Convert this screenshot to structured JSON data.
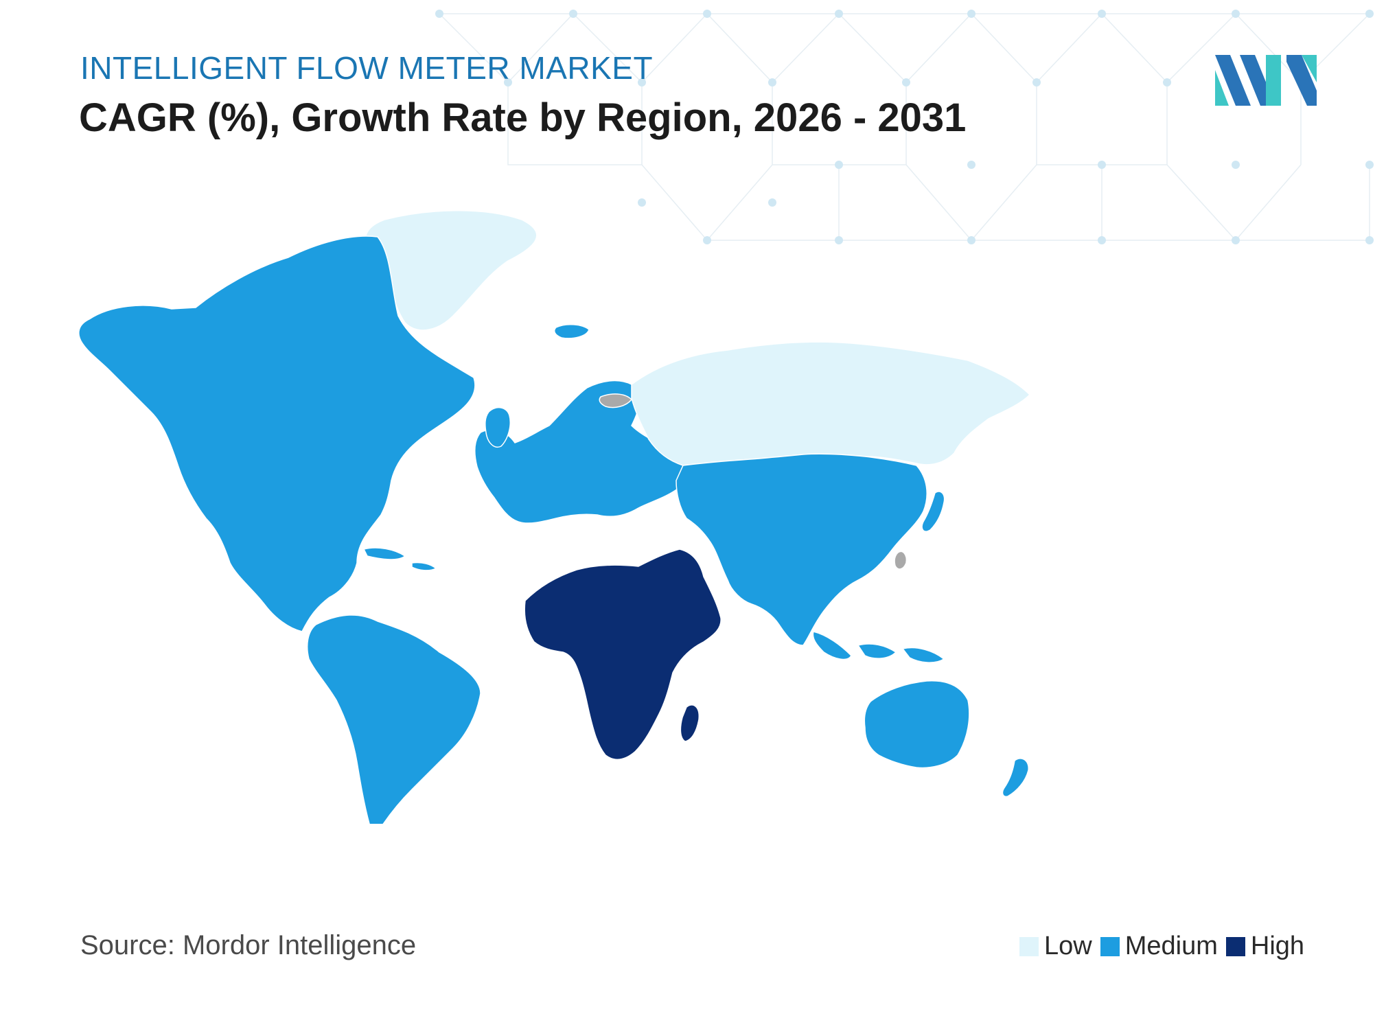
{
  "header": {
    "subtitle": "INTELLIGENT FLOW METER MARKET",
    "title": "CAGR (%), Growth Rate by Region, 2026 - 2031"
  },
  "source": "Source: Mordor Intelligence",
  "colors": {
    "low": "#dff4fb",
    "medium": "#1d9de0",
    "high": "#0b2d72",
    "no_data": "#a9a9a9",
    "accent": "#1a76b3"
  },
  "legend": [
    {
      "label": "Low",
      "level": "low"
    },
    {
      "label": "Medium",
      "level": "medium"
    },
    {
      "label": "High",
      "level": "high"
    }
  ],
  "map_data": {
    "type": "choropleth",
    "regions": [
      {
        "region": "North America",
        "level": "medium"
      },
      {
        "region": "South America",
        "level": "medium"
      },
      {
        "region": "Europe",
        "level": "medium"
      },
      {
        "region": "Russia",
        "level": "low"
      },
      {
        "region": "Greenland",
        "level": "low"
      },
      {
        "region": "Asia-Pacific",
        "level": "medium"
      },
      {
        "region": "Australia and New Zealand",
        "level": "medium"
      },
      {
        "region": "Middle East and Africa",
        "level": "high"
      }
    ]
  }
}
